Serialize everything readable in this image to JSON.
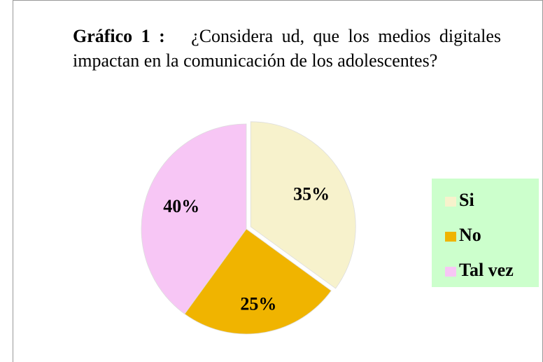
{
  "chart_data": {
    "type": "pie",
    "title_prefix": "Gráfico 1 :",
    "title": "¿Considera ud, que los medios digitales impactan en la comunicación de los adolescentes?",
    "categories": [
      "Si",
      "No",
      "Tal vez"
    ],
    "values": [
      35,
      25,
      40
    ],
    "value_labels": [
      "35%",
      "25%",
      "40%"
    ],
    "colors": [
      "#f7f2cc",
      "#f0b400",
      "#f7c6f5"
    ],
    "legend": "right"
  }
}
